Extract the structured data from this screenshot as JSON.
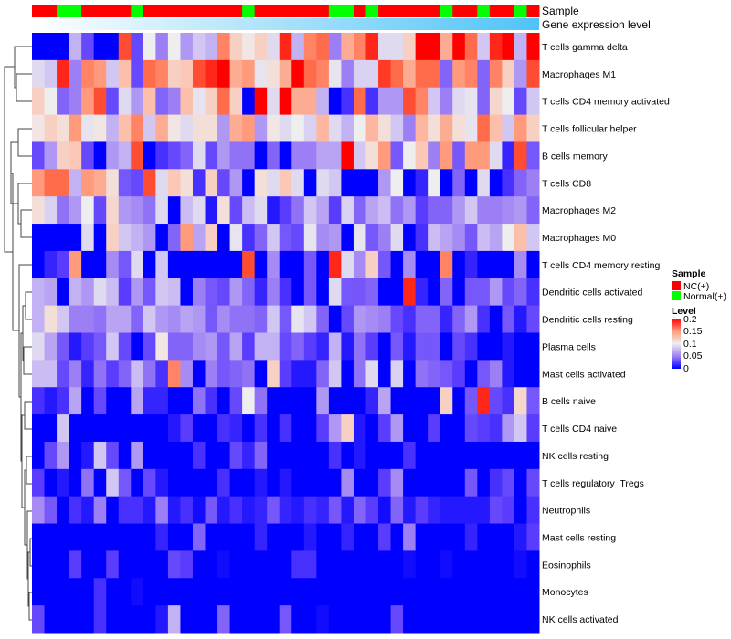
{
  "chart_data": {
    "type": "heatmap",
    "title": "",
    "annotations": {
      "sample_label": "Sample",
      "gene_expr_label": "Gene expression level",
      "sample_groups": [
        "NC",
        "NC",
        "Normal",
        "Normal",
        "NC",
        "NC",
        "NC",
        "NC",
        "Normal",
        "NC",
        "NC",
        "NC",
        "NC",
        "NC",
        "NC",
        "NC",
        "NC",
        "Normal",
        "NC",
        "NC",
        "NC",
        "NC",
        "NC",
        "NC",
        "Normal",
        "Normal",
        "NC",
        "Normal",
        "NC",
        "NC",
        "NC",
        "NC",
        "NC",
        "Normal",
        "NC",
        "NC",
        "Normal",
        "NC",
        "NC",
        "Normal",
        "NC"
      ]
    },
    "rows": [
      "T cells gamma delta",
      "Macrophages M1",
      "T cells CD4 memory activated",
      "T cells follicular helper",
      "B cells memory",
      "T cells CD8",
      "Macrophages M2",
      "Macrophages M0",
      "T cells CD4 memory resting",
      "Dendritic cells activated",
      "Dendritic cells resting",
      "Plasma cells",
      "Mast cells activated",
      "B cells naive",
      "T cells CD4 naive",
      "NK cells resting",
      "T cells regulatory  Tregs",
      "Neutrophils",
      "Mast cells resting",
      "Eosinophils",
      "Monocytes",
      "NK cells activated"
    ],
    "values": [
      [
        0,
        0,
        0,
        0.07,
        0.03,
        0,
        0,
        0.18,
        0.03,
        0.1,
        0.05,
        0.1,
        0.06,
        0.08,
        0.07,
        0.16,
        0.12,
        0.105,
        0.12,
        0.09,
        0.19,
        0.07,
        0.16,
        0.17,
        0.05,
        0.14,
        0.16,
        0.19,
        0.09,
        0.09,
        0.12,
        0.2,
        0.2,
        0.14,
        0.2,
        0.17,
        0.08,
        0.19,
        0.2,
        0.07,
        0.2
      ],
      [
        0.09,
        0.08,
        0.19,
        0.05,
        0.16,
        0.15,
        0.08,
        0.13,
        0.03,
        0.17,
        0.16,
        0.12,
        0.125,
        0.18,
        0.19,
        0.2,
        0.14,
        0.15,
        0.095,
        0.11,
        0.14,
        0.2,
        0.17,
        0.16,
        0.095,
        0.05,
        0.085,
        0.085,
        0.185,
        0.17,
        0.14,
        0.17,
        0.17,
        0.04,
        0.15,
        0.16,
        0.04,
        0.16,
        0.12,
        0.06,
        0.18
      ],
      [
        0.12,
        0.1,
        0.04,
        0.05,
        0.15,
        0.18,
        0.03,
        0.09,
        0.06,
        0.13,
        0.04,
        0.05,
        0.13,
        0.095,
        0.12,
        0.17,
        0.12,
        0,
        0.2,
        0.09,
        0.2,
        0.14,
        0.14,
        0.07,
        0,
        0.02,
        0.17,
        0.02,
        0.06,
        0.06,
        0.18,
        0.16,
        0.08,
        0.05,
        0.09,
        0.095,
        0.04,
        0.115,
        0.1,
        0.03,
        0.08
      ],
      [
        0.105,
        0.12,
        0.11,
        0.15,
        0.095,
        0.105,
        0.07,
        0.13,
        0.16,
        0.08,
        0.14,
        0.105,
        0.09,
        0.11,
        0.11,
        0.06,
        0.14,
        0.15,
        0.06,
        0.105,
        0.09,
        0.1,
        0.085,
        0.135,
        0.09,
        0.07,
        0.1,
        0.135,
        0.11,
        0.08,
        0.05,
        0.135,
        0.11,
        0.14,
        0.11,
        0.095,
        0.17,
        0.13,
        0.08,
        0.15,
        0.12
      ],
      [
        0.03,
        0.06,
        0.12,
        0.125,
        0.03,
        0,
        0.06,
        0.07,
        0.18,
        0,
        0.02,
        0.03,
        0.04,
        0.09,
        0.03,
        0.06,
        0.045,
        0.045,
        0,
        0.04,
        0,
        0.05,
        0.05,
        0.065,
        0.065,
        0.2,
        0.08,
        0.11,
        0.15,
        0.035,
        0.1,
        0.125,
        0.05,
        0.15,
        0.035,
        0.15,
        0.15,
        0.09,
        0.015,
        0.18,
        0.035
      ],
      [
        0.15,
        0.17,
        0.17,
        0.07,
        0.15,
        0.14,
        0.11,
        0.035,
        0.03,
        0.18,
        0.09,
        0.125,
        0.11,
        0.02,
        0.12,
        0.03,
        0.06,
        0,
        0.11,
        0.09,
        0.125,
        0.09,
        0,
        0.09,
        0.08,
        0,
        0,
        0,
        0.06,
        0.1,
        0,
        0.015,
        0.1,
        0,
        0.04,
        0,
        0.09,
        0,
        0.02,
        0.04,
        0.05
      ],
      [
        0.11,
        0.085,
        0.045,
        0.06,
        0.1,
        0.03,
        0.115,
        0.06,
        0.055,
        0.045,
        0.09,
        0,
        0.075,
        0.09,
        0.01,
        0.11,
        0.03,
        0.075,
        0.09,
        0.01,
        0.025,
        0.045,
        0.08,
        0.065,
        0.025,
        0.085,
        0.04,
        0.065,
        0.075,
        0.045,
        0.06,
        0.025,
        0.04,
        0.04,
        0.06,
        0.08,
        0.05,
        0.05,
        0.055,
        0.06,
        0.04
      ],
      [
        0,
        0,
        0,
        0,
        0.09,
        0,
        0.12,
        0.08,
        0.07,
        0.06,
        0,
        0.04,
        0.15,
        0.065,
        0.12,
        0,
        0.095,
        0.02,
        0.04,
        0.08,
        0.035,
        0.03,
        0.095,
        0.055,
        0.06,
        0,
        0.095,
        0.035,
        0.05,
        0.09,
        0,
        0.02,
        0.075,
        0.065,
        0.055,
        0.035,
        0.075,
        0.065,
        0.1,
        0.13,
        0.08
      ],
      [
        0,
        0.015,
        0.025,
        0.15,
        0,
        0,
        0.055,
        0.035,
        0.09,
        0,
        0.08,
        0,
        0,
        0,
        0,
        0,
        0,
        0.18,
        0,
        0.055,
        0,
        0,
        0.035,
        0,
        0.19,
        0.09,
        0.055,
        0.12,
        0.035,
        0,
        0.055,
        0,
        0,
        0.16,
        0,
        0.015,
        0,
        0,
        0,
        0.055,
        0
      ],
      [
        0.07,
        0.065,
        0,
        0.07,
        0.06,
        0.09,
        0.075,
        0.025,
        0.06,
        0.035,
        0.08,
        0.075,
        0,
        0.05,
        0.035,
        0.03,
        0.06,
        0.04,
        0.015,
        0.05,
        0.02,
        0,
        0.035,
        0,
        0.09,
        0.035,
        0.035,
        0.04,
        0,
        0,
        0.19,
        0.015,
        0,
        0.04,
        0,
        0.035,
        0.035,
        0.06,
        0.03,
        0.04,
        0.02
      ],
      [
        0.07,
        0.11,
        0.08,
        0.05,
        0.05,
        0.045,
        0.065,
        0.065,
        0.04,
        0.08,
        0.06,
        0.055,
        0.065,
        0.06,
        0.035,
        0.055,
        0.045,
        0.045,
        0.04,
        0.08,
        0.035,
        0.095,
        0.08,
        0.04,
        0,
        0.03,
        0.06,
        0.055,
        0.05,
        0.03,
        0.02,
        0.04,
        0.04,
        0.015,
        0.04,
        0.06,
        0.02,
        0,
        0.035,
        0.01,
        0.03
      ],
      [
        0.09,
        0.065,
        0.035,
        0.01,
        0.025,
        0.035,
        0.08,
        0.03,
        0,
        0.03,
        0.105,
        0.04,
        0.04,
        0.055,
        0.06,
        0.035,
        0.065,
        0.025,
        0.07,
        0.07,
        0.03,
        0.04,
        0.025,
        0.015,
        0.07,
        0.01,
        0.045,
        0.025,
        0,
        0.035,
        0.01,
        0.035,
        0.035,
        0,
        0.03,
        0.02,
        0,
        0,
        0.01,
        0,
        0
      ],
      [
        0.075,
        0.075,
        0.03,
        0.05,
        0.015,
        0.045,
        0.025,
        0.04,
        0.075,
        0.045,
        0.02,
        0.16,
        0.055,
        0,
        0.05,
        0.035,
        0.04,
        0.045,
        0,
        0.12,
        0.025,
        0.01,
        0.01,
        0.04,
        0.08,
        0,
        0.045,
        0.09,
        0,
        0.085,
        0,
        0.045,
        0.04,
        0.035,
        0.025,
        0,
        0.035,
        0.05,
        0.01,
        0,
        0
      ],
      [
        0.02,
        0.01,
        0.02,
        0.065,
        0,
        0.03,
        0,
        0,
        0.065,
        0.015,
        0.015,
        0,
        0,
        0.045,
        0.02,
        0,
        0.03,
        0.1,
        0.045,
        0,
        0,
        0,
        0,
        0.06,
        0,
        0,
        0,
        0.015,
        0.065,
        0,
        0,
        0,
        0,
        0.12,
        0,
        0.035,
        0.19,
        0.03,
        0.02,
        0.115,
        0.035
      ],
      [
        0,
        0,
        0.08,
        0,
        0,
        0,
        0,
        0,
        0,
        0,
        0,
        0.01,
        0.025,
        0,
        0,
        0.02,
        0.015,
        0,
        0.02,
        0,
        0.02,
        0,
        0,
        0.025,
        0.06,
        0.12,
        0.01,
        0,
        0.025,
        0.06,
        0,
        0,
        0.025,
        0,
        0,
        0.03,
        0.025,
        0.02,
        0.06,
        0.08,
        0.025
      ],
      [
        0,
        0.03,
        0.06,
        0,
        0.01,
        0.08,
        0.03,
        0,
        0.06,
        0,
        0,
        0,
        0,
        0.02,
        0,
        0,
        0.03,
        0.015,
        0.04,
        0,
        0,
        0,
        0,
        0,
        0.02,
        0,
        0.01,
        0,
        0,
        0,
        0.02,
        0,
        0,
        0,
        0,
        0,
        0,
        0,
        0,
        0,
        0
      ],
      [
        0.025,
        0,
        0.01,
        0,
        0.045,
        0,
        0.08,
        0.035,
        0,
        0.03,
        0.01,
        0,
        0,
        0,
        0,
        0.02,
        0,
        0,
        0.01,
        0,
        0.01,
        0,
        0,
        0,
        0,
        0.055,
        0,
        0,
        0.025,
        0.055,
        0,
        0,
        0,
        0,
        0,
        0.035,
        0,
        0.02,
        0.03,
        0,
        0.03
      ],
      [
        0.055,
        0.035,
        0,
        0.02,
        0.01,
        0.05,
        0,
        0.02,
        0.02,
        0.01,
        0.05,
        0.01,
        0.02,
        0.005,
        0.035,
        0.01,
        0.02,
        0.01,
        0.015,
        0.035,
        0.015,
        0.01,
        0.02,
        0.015,
        0.035,
        0.01,
        0.04,
        0.025,
        0.005,
        0.04,
        0.01,
        0.025,
        0.015,
        0.01,
        0.01,
        0.01,
        0.01,
        0.03,
        0.025,
        0,
        0.02
      ],
      [
        0,
        0,
        0,
        0,
        0,
        0,
        0,
        0,
        0,
        0,
        0.015,
        0,
        0,
        0.04,
        0,
        0,
        0,
        0,
        0.015,
        0,
        0,
        0,
        0.01,
        0,
        0,
        0.015,
        0,
        0,
        0.025,
        0,
        0.05,
        0,
        0,
        0,
        0,
        0.015,
        0,
        0,
        0,
        0.01,
        0.025
      ],
      [
        0,
        0,
        0,
        0.025,
        0,
        0,
        0.025,
        0,
        0,
        0,
        0,
        0.03,
        0.025,
        0,
        0,
        0.005,
        0,
        0,
        0,
        0,
        0,
        0.02,
        0.02,
        0,
        0,
        0,
        0,
        0,
        0,
        0,
        0.005,
        0,
        0,
        0.005,
        0,
        0,
        0,
        0,
        0,
        0.005,
        0
      ],
      [
        0,
        0,
        0,
        0,
        0,
        0.02,
        0,
        0,
        0.005,
        0,
        0,
        0,
        0,
        0,
        0,
        0,
        0,
        0,
        0,
        0,
        0,
        0,
        0,
        0,
        0,
        0,
        0,
        0,
        0,
        0,
        0,
        0,
        0,
        0,
        0,
        0,
        0,
        0,
        0,
        0,
        0
      ],
      [
        0.03,
        0,
        0,
        0,
        0,
        0.02,
        0,
        0,
        0,
        0,
        0.01,
        0.07,
        0,
        0,
        0,
        0.04,
        0,
        0,
        0,
        0,
        0.035,
        0,
        0,
        0.005,
        0,
        0,
        0,
        0,
        0,
        0.03,
        0,
        0,
        0,
        0,
        0,
        0,
        0,
        0,
        0,
        0,
        0
      ]
    ],
    "color_scale": {
      "min": 0,
      "mid": 0.1,
      "max": 0.2
    },
    "legend": {
      "placement": "right",
      "sample_title": "Sample",
      "sample_entries": [
        {
          "label": "NC(+)",
          "color": "#ff0000"
        },
        {
          "label": "Normal(+)",
          "color": "#00ff00"
        }
      ],
      "level_title": "Level",
      "level_ticks": [
        "0.2",
        "0.15",
        "0.1",
        "0.05",
        "0"
      ]
    },
    "colors": {
      "nc": "#ff0000",
      "normal": "#00ff00",
      "expr_low": "#ffffff",
      "expr_high": "#4fc3f7"
    }
  }
}
